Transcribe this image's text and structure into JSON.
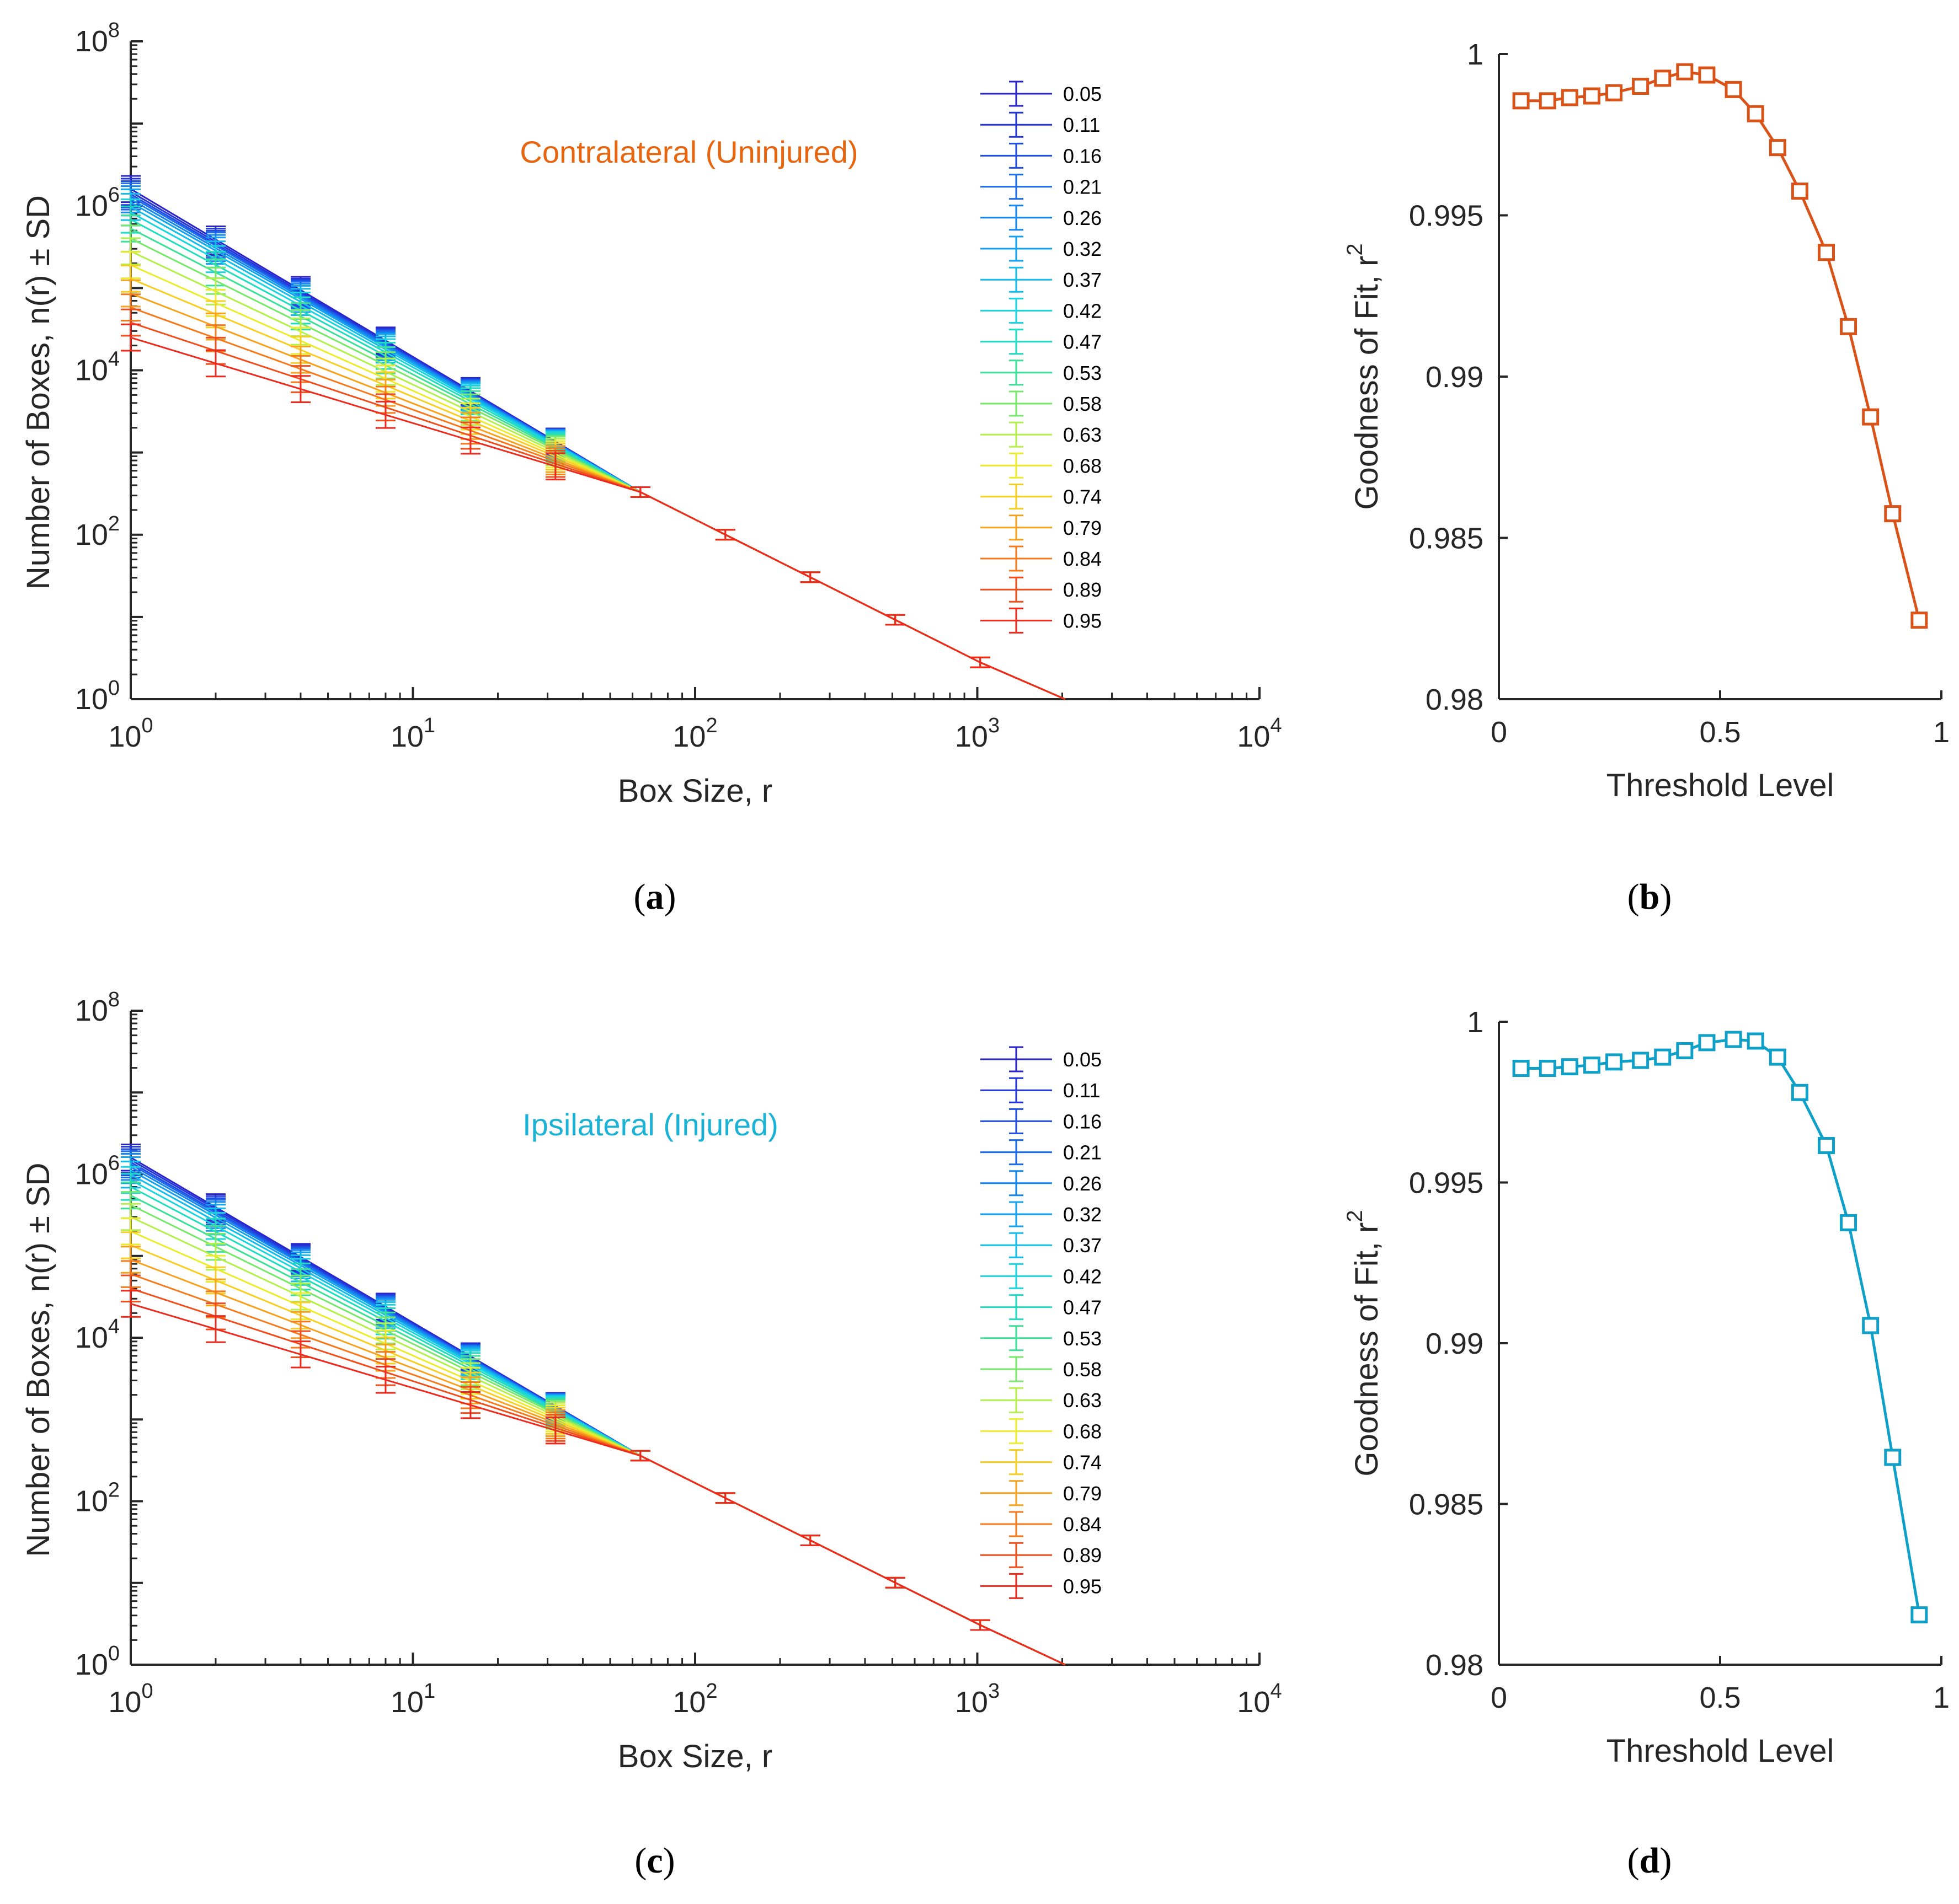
{
  "panels": [
    {
      "id": "a",
      "caption_letter": "a",
      "chart_type": "loglog-errorbar",
      "title": "Contralateral (Uninjured)",
      "title_color": "#E8650F",
      "xlabel": "Box Size, r",
      "ylabel": "Number of Boxes, n(r)  ± SD",
      "xlim": [
        1,
        10000
      ],
      "ylim": [
        1,
        100000000
      ],
      "xtick_exponents": [
        "0",
        "1",
        "2",
        "3",
        "4"
      ],
      "ytick_exponents": [
        "0",
        "2",
        "4",
        "6",
        "8"
      ],
      "box_sizes": [
        1,
        2,
        4,
        8,
        16,
        32,
        64,
        128,
        256,
        512,
        1024,
        2048
      ],
      "n1": [
        1600000,
        1480000,
        1380000,
        1300000,
        1200000,
        1100000,
        970000,
        830000,
        680000,
        530000,
        400000,
        280000,
        190000,
        130000,
        86000,
        58000,
        38000,
        25000
      ],
      "merge_value_at_64": 330
    },
    {
      "id": "c",
      "caption_letter": "c",
      "chart_type": "loglog-errorbar",
      "title": "Ipsilateral (Injured)",
      "title_color": "#1AB3D6",
      "xlabel": "Box Size, r",
      "ylabel": "Number of Boxes, n(r)  ± SD",
      "xlim": [
        1,
        10000
      ],
      "ylim": [
        1,
        100000000
      ],
      "xtick_exponents": [
        "0",
        "1",
        "2",
        "3",
        "4"
      ],
      "ytick_exponents": [
        "0",
        "2",
        "4",
        "6",
        "8"
      ],
      "box_sizes": [
        1,
        2,
        4,
        8,
        16,
        32,
        64,
        128,
        256,
        512,
        1024,
        2048
      ],
      "n1": [
        1600000,
        1500000,
        1400000,
        1320000,
        1230000,
        1120000,
        990000,
        850000,
        700000,
        550000,
        420000,
        300000,
        200000,
        135000,
        90000,
        60000,
        40000,
        26000
      ],
      "merge_value_at_64": 360
    },
    {
      "id": "b",
      "caption_letter": "b",
      "chart_type": "line",
      "color": "#D95319",
      "xlabel": "Threshold Level",
      "ylabel": "Goodness of Fit, r",
      "ylabel_sup": "2",
      "xlim": [
        0,
        1
      ],
      "ylim": [
        0.98,
        1
      ],
      "xticks": [
        "0",
        "0.5",
        "1"
      ],
      "yticks": [
        "0.98",
        "0.985",
        "0.99",
        "0.995",
        "1"
      ],
      "x": [
        0.05,
        0.11,
        0.16,
        0.21,
        0.26,
        0.32,
        0.37,
        0.42,
        0.47,
        0.53,
        0.58,
        0.63,
        0.68,
        0.74,
        0.79,
        0.84,
        0.89,
        0.95
      ],
      "y": [
        0.99855,
        0.99855,
        0.99865,
        0.9987,
        0.9988,
        0.999,
        0.99925,
        0.99945,
        0.99935,
        0.9989,
        0.99815,
        0.9971,
        0.99575,
        0.99385,
        0.99155,
        0.98875,
        0.98575,
        0.98245
      ]
    },
    {
      "id": "d",
      "caption_letter": "d",
      "chart_type": "line",
      "color": "#0FA0C8",
      "xlabel": "Threshold Level",
      "ylabel": "Goodness of Fit, r",
      "ylabel_sup": "2",
      "xlim": [
        0,
        1
      ],
      "ylim": [
        0.98,
        1
      ],
      "xticks": [
        "0",
        "0.5",
        "1"
      ],
      "yticks": [
        "0.98",
        "0.985",
        "0.99",
        "0.995",
        "1"
      ],
      "x": [
        0.05,
        0.11,
        0.16,
        0.21,
        0.26,
        0.32,
        0.37,
        0.42,
        0.47,
        0.53,
        0.58,
        0.63,
        0.68,
        0.74,
        0.79,
        0.84,
        0.89,
        0.95
      ],
      "y": [
        0.99855,
        0.99855,
        0.9986,
        0.99865,
        0.99875,
        0.9988,
        0.9989,
        0.9991,
        0.99935,
        0.99945,
        0.9994,
        0.9989,
        0.9978,
        0.99615,
        0.99375,
        0.99055,
        0.98645,
        0.98155
      ]
    }
  ],
  "legend": {
    "labels": [
      "0.05",
      "0.11",
      "0.16",
      "0.21",
      "0.26",
      "0.32",
      "0.37",
      "0.42",
      "0.47",
      "0.53",
      "0.58",
      "0.63",
      "0.68",
      "0.74",
      "0.79",
      "0.84",
      "0.89",
      "0.95"
    ],
    "colors": [
      "#2A24C9",
      "#2236D8",
      "#1F4DE4",
      "#1A6AEE",
      "#1486F0",
      "#12A2EE",
      "#14BCEA",
      "#1AD4E0",
      "#20DCC0",
      "#3CE098",
      "#78E86A",
      "#B4F04A",
      "#ECEC2C",
      "#F8CE22",
      "#F7A21E",
      "#F47A1C",
      "#F04E1C",
      "#EC2A1E"
    ]
  },
  "chart_data": [
    {
      "type": "line",
      "title": "Contralateral (Uninjured)",
      "xlabel": "Box Size, r",
      "ylabel": "Number of Boxes, n(r) ± SD",
      "xscale": "log",
      "yscale": "log",
      "xlim": [
        1,
        10000
      ],
      "ylim": [
        1,
        100000000
      ],
      "categories_note": "18 threshold series, values at r = 1 listed; all series converge to ~330 at r = 64 and continue as slope -1.7 line to ~1 at r = 2048",
      "series_names": [
        "0.05",
        "0.11",
        "0.16",
        "0.21",
        "0.26",
        "0.32",
        "0.37",
        "0.42",
        "0.47",
        "0.53",
        "0.58",
        "0.63",
        "0.68",
        "0.74",
        "0.79",
        "0.84",
        "0.89",
        "0.95"
      ],
      "values_at_r1": [
        1600000,
        1480000,
        1380000,
        1300000,
        1200000,
        1100000,
        970000,
        830000,
        680000,
        530000,
        400000,
        280000,
        190000,
        130000,
        86000,
        58000,
        38000,
        25000
      ],
      "shared_tail": {
        "x": [
          64,
          128,
          256,
          512,
          1024,
          2048
        ],
        "y": [
          330,
          110,
          36,
          12,
          4,
          1
        ]
      }
    },
    {
      "type": "line",
      "title": "Ipsilateral (Injured)",
      "xlabel": "Box Size, r",
      "ylabel": "Number of Boxes, n(r) ± SD",
      "xscale": "log",
      "yscale": "log",
      "xlim": [
        1,
        10000
      ],
      "ylim": [
        1,
        100000000
      ],
      "series_names": [
        "0.05",
        "0.11",
        "0.16",
        "0.21",
        "0.26",
        "0.32",
        "0.37",
        "0.42",
        "0.47",
        "0.53",
        "0.58",
        "0.63",
        "0.68",
        "0.74",
        "0.79",
        "0.84",
        "0.89",
        "0.95"
      ],
      "values_at_r1": [
        1600000,
        1500000,
        1400000,
        1320000,
        1230000,
        1120000,
        990000,
        850000,
        700000,
        550000,
        420000,
        300000,
        200000,
        135000,
        90000,
        60000,
        40000,
        26000
      ],
      "shared_tail": {
        "x": [
          64,
          128,
          256,
          512,
          1024,
          2048
        ],
        "y": [
          360,
          110,
          36,
          12,
          4,
          1
        ]
      }
    },
    {
      "type": "line",
      "title": "",
      "xlabel": "Threshold Level",
      "ylabel": "Goodness of Fit, r^2",
      "xlim": [
        0,
        1
      ],
      "ylim": [
        0.98,
        1
      ],
      "x": [
        0.05,
        0.11,
        0.16,
        0.21,
        0.26,
        0.32,
        0.37,
        0.42,
        0.47,
        0.53,
        0.58,
        0.63,
        0.68,
        0.74,
        0.79,
        0.84,
        0.89,
        0.95
      ],
      "y": [
        0.99855,
        0.99855,
        0.99865,
        0.9987,
        0.9988,
        0.999,
        0.99925,
        0.99945,
        0.99935,
        0.9989,
        0.99815,
        0.9971,
        0.99575,
        0.99385,
        0.99155,
        0.98875,
        0.98575,
        0.98245
      ]
    },
    {
      "type": "line",
      "title": "",
      "xlabel": "Threshold Level",
      "ylabel": "Goodness of Fit, r^2",
      "xlim": [
        0,
        1
      ],
      "ylim": [
        0.98,
        1
      ],
      "x": [
        0.05,
        0.11,
        0.16,
        0.21,
        0.26,
        0.32,
        0.37,
        0.42,
        0.47,
        0.53,
        0.58,
        0.63,
        0.68,
        0.74,
        0.79,
        0.84,
        0.89,
        0.95
      ],
      "y": [
        0.99855,
        0.99855,
        0.9986,
        0.99865,
        0.99875,
        0.9988,
        0.9989,
        0.9991,
        0.99935,
        0.99945,
        0.9994,
        0.9989,
        0.9978,
        0.99615,
        0.99375,
        0.99055,
        0.98645,
        0.98155
      ]
    }
  ]
}
